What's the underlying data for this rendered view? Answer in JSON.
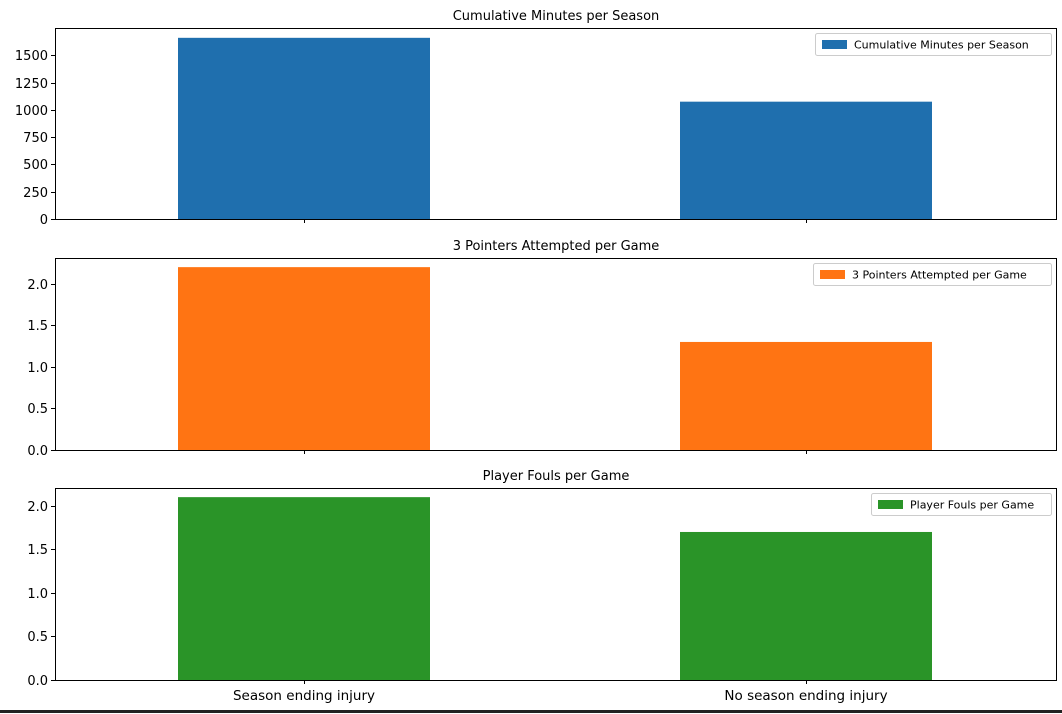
{
  "chart_data": [
    {
      "type": "bar",
      "title": "Cumulative Minutes per Season",
      "categories": [
        "Season ending injury",
        "No season ending injury"
      ],
      "series": [
        {
          "name": "Cumulative Minutes per Season",
          "values": [
            1660,
            1075
          ]
        }
      ],
      "ylim": [
        0,
        1750
      ],
      "yticks": [
        0,
        250,
        500,
        750,
        1000,
        1250,
        1500
      ],
      "ytick_labels": [
        "0",
        "250",
        "500",
        "750",
        "1000",
        "1250",
        "1500"
      ],
      "show_xtick_labels": false,
      "legend": "top-right",
      "grid": false,
      "color": "#1f6fae"
    },
    {
      "type": "bar",
      "title": "3 Pointers Attempted per Game",
      "categories": [
        "Season ending injury",
        "No season ending injury"
      ],
      "series": [
        {
          "name": "3 Pointers Attempted per Game",
          "values": [
            2.2,
            1.3
          ]
        }
      ],
      "ylim": [
        0,
        2.31
      ],
      "yticks": [
        0,
        0.5,
        1.0,
        1.5,
        2.0
      ],
      "ytick_labels": [
        "0.0",
        "0.5",
        "1.0",
        "1.5",
        "2.0"
      ],
      "show_xtick_labels": false,
      "legend": "top-right",
      "grid": false,
      "color": "#ff7413"
    },
    {
      "type": "bar",
      "title": "Player Fouls per Game",
      "categories": [
        "Season ending injury",
        "No season ending injury"
      ],
      "series": [
        {
          "name": "Player Fouls per Game",
          "values": [
            2.1,
            1.7
          ]
        }
      ],
      "ylim": [
        0,
        2.205
      ],
      "yticks": [
        0,
        0.5,
        1.0,
        1.5,
        2.0
      ],
      "ytick_labels": [
        "0.0",
        "0.5",
        "1.0",
        "1.5",
        "2.0"
      ],
      "show_xtick_labels": true,
      "legend": "top-right",
      "grid": false,
      "color": "#2a9428"
    }
  ]
}
